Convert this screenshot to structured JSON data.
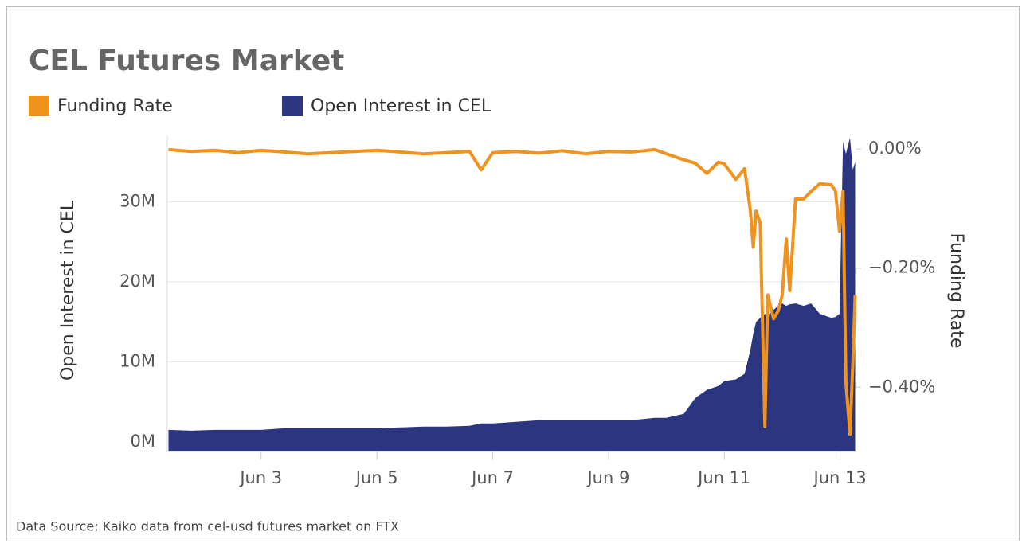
{
  "chart_data": {
    "type": "area-line",
    "title": "CEL Futures Market",
    "y_label": "Open Interest in CEL",
    "y2_label": "Funding Rate",
    "source": "Data Source: Kaiko data from cel-usd futures market on FTX",
    "legend": "top-left",
    "grid": true,
    "x": [
      1.4,
      1.8,
      2.2,
      2.6,
      3.0,
      3.4,
      3.8,
      4.2,
      4.6,
      5.0,
      5.4,
      5.8,
      6.2,
      6.6,
      6.8,
      7.0,
      7.4,
      7.8,
      8.2,
      8.6,
      9.0,
      9.4,
      9.8,
      10.0,
      10.3,
      10.5,
      10.7,
      10.9,
      11.0,
      11.2,
      11.35,
      11.45,
      11.5,
      11.55,
      11.62,
      11.7,
      11.75,
      11.85,
      11.93,
      12.0,
      12.07,
      12.13,
      12.23,
      12.37,
      12.5,
      12.65,
      12.85,
      12.92,
      12.99,
      13.05,
      13.1,
      13.17,
      13.22,
      13.26
    ],
    "xlim": [
      1.38,
      13.28
    ],
    "xticks": [
      {
        "value": 3,
        "label": "Jun 3"
      },
      {
        "value": 5,
        "label": "Jun 5"
      },
      {
        "value": 7,
        "label": "Jun 7"
      },
      {
        "value": 9,
        "label": "Jun 9"
      },
      {
        "value": 11,
        "label": "Jun 11"
      },
      {
        "value": 13,
        "label": "Jun 13"
      }
    ],
    "ylim": [
      -1200000,
      38300000
    ],
    "yticks": [
      {
        "value": 0,
        "label": "0M"
      },
      {
        "value": 10000000,
        "label": "10M"
      },
      {
        "value": 20000000,
        "label": "20M"
      },
      {
        "value": 30000000,
        "label": "30M"
      }
    ],
    "y2lim": [
      -0.508,
      0.023
    ],
    "y2ticks": [
      {
        "value": 0,
        "label": "0.00%"
      },
      {
        "value": -0.2,
        "label": "−0.20%"
      },
      {
        "value": -0.4,
        "label": "−0.40%"
      }
    ],
    "series": [
      {
        "name": "Funding Rate",
        "color": "#f0921e",
        "axis": "y2",
        "kind": "line",
        "values": [
          -0.001,
          -0.004,
          -0.002,
          -0.006,
          -0.002,
          -0.005,
          -0.008,
          -0.006,
          -0.004,
          -0.002,
          -0.005,
          -0.008,
          -0.006,
          -0.004,
          -0.035,
          -0.006,
          -0.004,
          -0.007,
          -0.003,
          -0.008,
          -0.004,
          -0.005,
          -0.001,
          -0.008,
          -0.018,
          -0.024,
          -0.041,
          -0.022,
          -0.025,
          -0.051,
          -0.033,
          -0.104,
          -0.165,
          -0.104,
          -0.124,
          -0.466,
          -0.245,
          -0.285,
          -0.272,
          -0.245,
          -0.151,
          -0.238,
          -0.084,
          -0.084,
          -0.071,
          -0.058,
          -0.06,
          -0.071,
          -0.138,
          -0.071,
          -0.392,
          -0.479,
          -0.36,
          -0.245
        ]
      },
      {
        "name": "Open Interest in CEL",
        "color": "#2b3580",
        "axis": "y",
        "kind": "area",
        "values": [
          1500000,
          1400000,
          1500000,
          1500000,
          1500000,
          1700000,
          1700000,
          1700000,
          1700000,
          1700000,
          1800000,
          1900000,
          1900000,
          2000000,
          2300000,
          2300000,
          2500000,
          2700000,
          2700000,
          2700000,
          2700000,
          2700000,
          3000000,
          3000000,
          3500000,
          5500000,
          6500000,
          7000000,
          7600000,
          7800000,
          8500000,
          11500000,
          13500000,
          15000000,
          15500000,
          16000000,
          15800000,
          16500000,
          17000000,
          17300000,
          17000000,
          17200000,
          17300000,
          17000000,
          17300000,
          16000000,
          15500000,
          15600000,
          16000000,
          37500000,
          36000000,
          38000000,
          34000000,
          35000000
        ]
      }
    ]
  }
}
